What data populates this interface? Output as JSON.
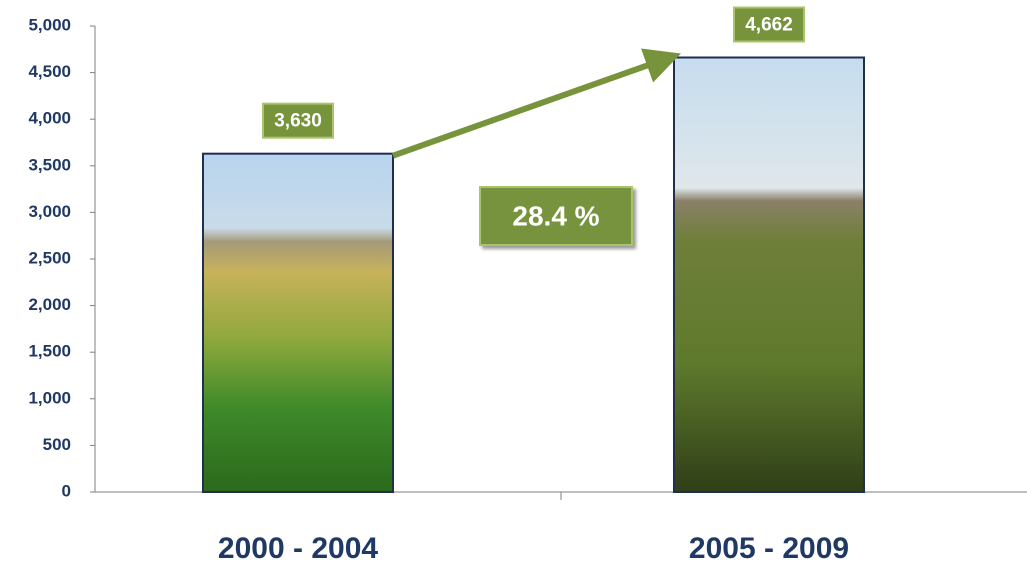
{
  "chart_data": {
    "type": "bar",
    "categories": [
      "2000 - 2004",
      "2005 - 2009"
    ],
    "values": [
      3630,
      4662
    ],
    "value_labels": [
      "3,630",
      "4,662"
    ],
    "annotation": "28.4 %",
    "ylim": [
      0,
      5000
    ],
    "yticks": [
      0,
      500,
      {
        "value": 1000,
        "label": "1,000"
      },
      {
        "value": 1500,
        "label": "1,500"
      },
      {
        "value": 2000,
        "label": "2,000"
      },
      {
        "value": 2500,
        "label": "2,500"
      },
      {
        "value": 3000,
        "label": "3,000"
      },
      {
        "value": 3500,
        "label": "3,500"
      },
      {
        "value": 4000,
        "label": "4,000"
      },
      {
        "value": 4500,
        "label": "4,500"
      },
      {
        "value": 5000,
        "label": "5,000"
      }
    ],
    "grid": false,
    "color": "#77933c"
  }
}
